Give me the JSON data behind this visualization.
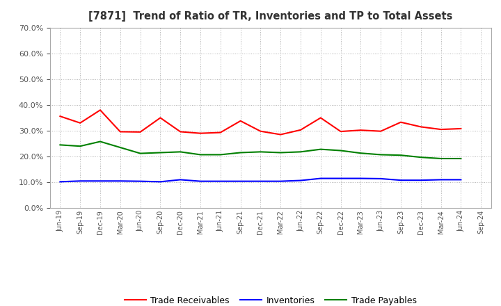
{
  "title": "[7871]  Trend of Ratio of TR, Inventories and TP to Total Assets",
  "x_labels": [
    "Jun-19",
    "Sep-19",
    "Dec-19",
    "Mar-20",
    "Jun-20",
    "Sep-20",
    "Dec-20",
    "Mar-21",
    "Jun-21",
    "Sep-21",
    "Dec-21",
    "Mar-22",
    "Jun-22",
    "Sep-22",
    "Dec-22",
    "Mar-23",
    "Jun-23",
    "Sep-23",
    "Dec-23",
    "Mar-24",
    "Jun-24",
    "Sep-24"
  ],
  "trade_receivables": [
    0.356,
    0.33,
    0.38,
    0.296,
    0.295,
    0.35,
    0.296,
    0.29,
    0.293,
    0.338,
    0.298,
    0.285,
    0.303,
    0.35,
    0.297,
    0.302,
    0.298,
    0.333,
    0.315,
    0.305,
    0.308,
    null
  ],
  "inventories": [
    0.102,
    0.105,
    0.105,
    0.105,
    0.104,
    0.102,
    0.11,
    0.104,
    0.104,
    0.104,
    0.104,
    0.104,
    0.107,
    0.115,
    0.115,
    0.115,
    0.114,
    0.108,
    0.108,
    0.11,
    0.11,
    null
  ],
  "trade_payables": [
    0.245,
    0.24,
    0.258,
    0.235,
    0.212,
    0.215,
    0.218,
    0.207,
    0.207,
    0.215,
    0.218,
    0.215,
    0.218,
    0.228,
    0.223,
    0.213,
    0.207,
    0.205,
    0.197,
    0.192,
    0.192,
    null
  ],
  "tr_color": "#ff0000",
  "inv_color": "#0000ff",
  "tp_color": "#008000",
  "ylim": [
    0.0,
    0.7
  ],
  "yticks": [
    0.0,
    0.1,
    0.2,
    0.3,
    0.4,
    0.5,
    0.6,
    0.7
  ],
  "legend_labels": [
    "Trade Receivables",
    "Inventories",
    "Trade Payables"
  ],
  "background_color": "#ffffff",
  "title_color": "#333333",
  "axis_color": "#555555"
}
